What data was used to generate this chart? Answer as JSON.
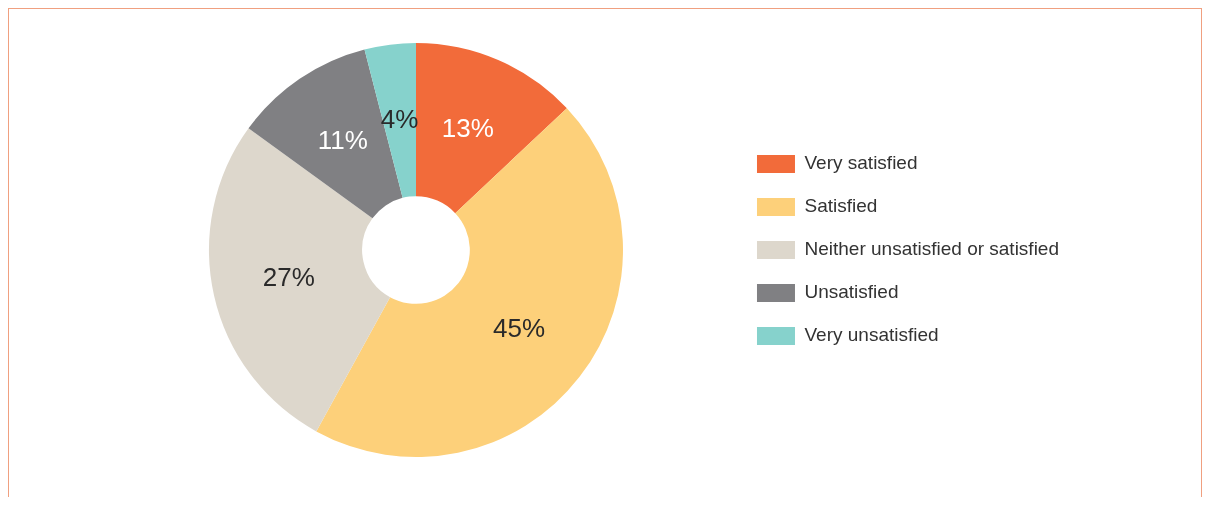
{
  "chart_data": {
    "type": "donut",
    "categories": [
      "Very satisfied",
      "Satisfied",
      "Neither unsatisfied or satisfied",
      "Unsatisfied",
      "Very unsatisfied"
    ],
    "values": [
      13,
      45,
      27,
      11,
      4
    ],
    "colors": [
      "#f26b3a",
      "#fdd07a",
      "#ddd7cc",
      "#808083",
      "#86d2cc"
    ],
    "value_labels": [
      "13%",
      "45%",
      "27%",
      "11%",
      "4%"
    ],
    "legend": "right"
  }
}
